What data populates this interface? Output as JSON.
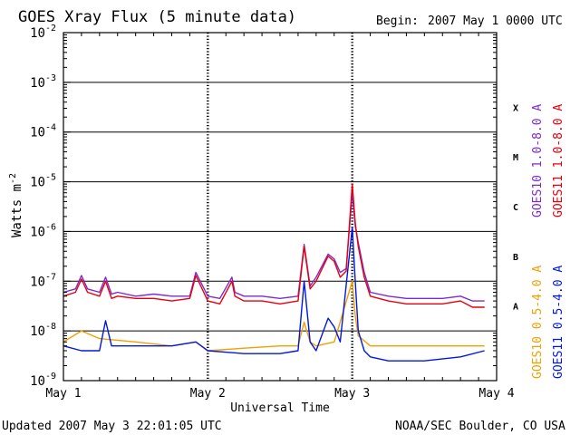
{
  "header": {
    "title": "GOES Xray Flux (5 minute data)",
    "begin_label": "Begin:",
    "begin_value": "2007 May 1 0000 UTC"
  },
  "footer": {
    "updated": "Updated 2007 May  3 22:01:05 UTC",
    "credit": "NOAA/SEC Boulder, CO USA"
  },
  "colors": {
    "goes10_long": "#7b2bd1",
    "goes11_long": "#e8000d",
    "goes10_short": "#f0a000",
    "goes11_short": "#0018e0",
    "axis": "#000000"
  },
  "chart_data": {
    "type": "line",
    "title": "GOES Xray Flux (5 minute data)",
    "xlabel": "Universal Time",
    "ylabel_main": "Watts m",
    "ylabel_sup": "-2",
    "yscale": "log",
    "ylim": [
      1e-09,
      0.01
    ],
    "xlim": [
      "2007-05-01 00:00",
      "2007-05-04 00:00"
    ],
    "x_ticks": [
      "May 1",
      "May 2",
      "May 3",
      "May 4"
    ],
    "y_ticks": [
      {
        "base": "10",
        "exp": "-9"
      },
      {
        "base": "10",
        "exp": "-8"
      },
      {
        "base": "10",
        "exp": "-7"
      },
      {
        "base": "10",
        "exp": "-6"
      },
      {
        "base": "10",
        "exp": "-5"
      },
      {
        "base": "10",
        "exp": "-4"
      },
      {
        "base": "10",
        "exp": "-3"
      },
      {
        "base": "10",
        "exp": "-2"
      }
    ],
    "flare_classes": [
      {
        "label": "A",
        "level": 1e-08
      },
      {
        "label": "B",
        "level": 1e-07
      },
      {
        "label": "C",
        "level": 1e-06
      },
      {
        "label": "M",
        "level": 1e-05
      },
      {
        "label": "X",
        "level": 0.0001
      }
    ],
    "grid": "horizontal decade lines, dashed day lines",
    "series": [
      {
        "name": "GOES10 1.0-8.0 A",
        "color": "#7b2bd1",
        "x": [
          "2007-05-01 00:00",
          "2007-05-01 02:00",
          "2007-05-01 03:00",
          "2007-05-01 04:00",
          "2007-05-01 06:00",
          "2007-05-01 07:00",
          "2007-05-01 08:00",
          "2007-05-01 09:00",
          "2007-05-01 12:00",
          "2007-05-01 15:00",
          "2007-05-01 18:00",
          "2007-05-01 21:00",
          "2007-05-01 22:00",
          "2007-05-02 00:00",
          "2007-05-02 02:00",
          "2007-05-02 04:00",
          "2007-05-02 04:30",
          "2007-05-02 06:00",
          "2007-05-02 09:00",
          "2007-05-02 12:00",
          "2007-05-02 15:00",
          "2007-05-02 16:00",
          "2007-05-02 17:00",
          "2007-05-02 18:00",
          "2007-05-02 20:00",
          "2007-05-02 21:00",
          "2007-05-02 22:00",
          "2007-05-02 23:00",
          "2007-05-03 00:00",
          "2007-05-03 00:30",
          "2007-05-03 01:00",
          "2007-05-03 02:00",
          "2007-05-03 03:00",
          "2007-05-03 06:00",
          "2007-05-03 09:00",
          "2007-05-03 12:00",
          "2007-05-03 15:00",
          "2007-05-03 18:00",
          "2007-05-03 20:00",
          "2007-05-03 22:00"
        ],
        "y": [
          6e-08,
          7e-08,
          1.3e-07,
          7e-08,
          6e-08,
          1.2e-07,
          5.5e-08,
          6e-08,
          5e-08,
          5.5e-08,
          5e-08,
          5e-08,
          1.5e-07,
          5e-08,
          4.5e-08,
          1.2e-07,
          6e-08,
          5e-08,
          5e-08,
          4.5e-08,
          5e-08,
          5.5e-07,
          8e-08,
          1.2e-07,
          3.5e-07,
          2.8e-07,
          1.5e-07,
          1.8e-07,
          6e-06,
          1.3e-06,
          6e-07,
          1.5e-07,
          6e-08,
          5e-08,
          4.5e-08,
          4.5e-08,
          4.5e-08,
          5e-08,
          4e-08,
          4e-08
        ]
      },
      {
        "name": "GOES11 1.0-8.0 A",
        "color": "#e8000d",
        "x": [
          "2007-05-01 00:00",
          "2007-05-01 02:00",
          "2007-05-01 03:00",
          "2007-05-01 04:00",
          "2007-05-01 06:00",
          "2007-05-01 07:00",
          "2007-05-01 08:00",
          "2007-05-01 09:00",
          "2007-05-01 12:00",
          "2007-05-01 15:00",
          "2007-05-01 18:00",
          "2007-05-01 21:00",
          "2007-05-01 22:00",
          "2007-05-02 00:00",
          "2007-05-02 02:00",
          "2007-05-02 04:00",
          "2007-05-02 04:30",
          "2007-05-02 06:00",
          "2007-05-02 09:00",
          "2007-05-02 12:00",
          "2007-05-02 15:00",
          "2007-05-02 16:00",
          "2007-05-02 17:00",
          "2007-05-02 18:00",
          "2007-05-02 20:00",
          "2007-05-02 21:00",
          "2007-05-02 22:00",
          "2007-05-02 23:00",
          "2007-05-03 00:00",
          "2007-05-03 00:30",
          "2007-05-03 01:00",
          "2007-05-03 02:00",
          "2007-05-03 03:00",
          "2007-05-03 06:00",
          "2007-05-03 09:00",
          "2007-05-03 12:00",
          "2007-05-03 15:00",
          "2007-05-03 18:00",
          "2007-05-03 20:00",
          "2007-05-03 22:00"
        ],
        "y": [
          5e-08,
          6e-08,
          1.1e-07,
          6e-08,
          5e-08,
          1e-07,
          4.5e-08,
          5e-08,
          4.5e-08,
          4.5e-08,
          4e-08,
          4.5e-08,
          1.3e-07,
          4e-08,
          3.5e-08,
          1e-07,
          5e-08,
          4e-08,
          4e-08,
          3.5e-08,
          4e-08,
          5e-07,
          7e-08,
          1e-07,
          3.2e-07,
          2.5e-07,
          1.2e-07,
          1.6e-07,
          9e-06,
          1.5e-06,
          5e-07,
          1.2e-07,
          5e-08,
          4e-08,
          3.5e-08,
          3.5e-08,
          3.5e-08,
          4e-08,
          3e-08,
          3e-08
        ]
      },
      {
        "name": "GOES10 0.5-4.0 A",
        "color": "#f0a000",
        "x": [
          "2007-05-01 00:00",
          "2007-05-01 03:00",
          "2007-05-01 06:00",
          "2007-05-01 12:00",
          "2007-05-01 18:00",
          "2007-05-01 22:00",
          "2007-05-02 00:00",
          "2007-05-02 06:00",
          "2007-05-02 12:00",
          "2007-05-02 15:00",
          "2007-05-02 16:00",
          "2007-05-02 17:00",
          "2007-05-02 18:00",
          "2007-05-02 21:00",
          "2007-05-03 00:00",
          "2007-05-03 00:30",
          "2007-05-03 01:00",
          "2007-05-03 03:00",
          "2007-05-03 06:00",
          "2007-05-03 12:00",
          "2007-05-03 18:00",
          "2007-05-03 22:00"
        ],
        "y": [
          6e-09,
          1e-08,
          7e-09,
          6e-09,
          5e-09,
          6e-09,
          4e-09,
          4.5e-09,
          5e-09,
          5e-09,
          1.5e-08,
          6e-09,
          5e-09,
          6e-09,
          1e-07,
          2e-08,
          8e-09,
          5e-09,
          5e-09,
          5e-09,
          5e-09,
          5e-09
        ]
      },
      {
        "name": "GOES11 0.5-4.0 A",
        "color": "#0018e0",
        "x": [
          "2007-05-01 00:00",
          "2007-05-01 03:00",
          "2007-05-01 06:00",
          "2007-05-01 07:00",
          "2007-05-01 08:00",
          "2007-05-01 12:00",
          "2007-05-01 18:00",
          "2007-05-01 22:00",
          "2007-05-02 00:00",
          "2007-05-02 06:00",
          "2007-05-02 12:00",
          "2007-05-02 15:00",
          "2007-05-02 16:00",
          "2007-05-02 17:00",
          "2007-05-02 18:00",
          "2007-05-02 20:00",
          "2007-05-02 21:00",
          "2007-05-02 22:00",
          "2007-05-03 00:00",
          "2007-05-03 00:30",
          "2007-05-03 01:00",
          "2007-05-03 02:00",
          "2007-05-03 03:00",
          "2007-05-03 06:00",
          "2007-05-03 12:00",
          "2007-05-03 18:00",
          "2007-05-03 22:00"
        ],
        "y": [
          5e-09,
          4e-09,
          4e-09,
          1.6e-08,
          5e-09,
          5e-09,
          5e-09,
          6e-09,
          4e-09,
          3.5e-09,
          3.5e-09,
          4e-09,
          1e-07,
          6e-09,
          4e-09,
          1.8e-08,
          1.2e-08,
          6e-09,
          1.2e-06,
          1e-07,
          1e-08,
          4e-09,
          3e-09,
          2.5e-09,
          2.5e-09,
          3e-09,
          4e-09
        ]
      }
    ]
  }
}
